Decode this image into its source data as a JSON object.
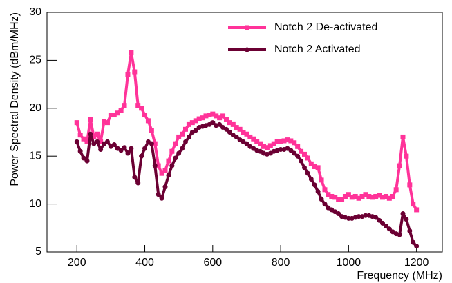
{
  "chart_data": {
    "type": "line",
    "x_label": "Frequency (MHz)",
    "y_label": "Power Spectral Density (dBm/MHz)",
    "x": [
      200,
      210,
      220,
      230,
      240,
      250,
      260,
      270,
      280,
      290,
      300,
      310,
      320,
      330,
      340,
      350,
      360,
      370,
      380,
      390,
      400,
      410,
      420,
      430,
      440,
      450,
      460,
      470,
      480,
      490,
      500,
      510,
      520,
      530,
      540,
      550,
      560,
      570,
      580,
      590,
      600,
      610,
      620,
      630,
      640,
      650,
      660,
      670,
      680,
      690,
      700,
      710,
      720,
      730,
      740,
      750,
      760,
      770,
      780,
      790,
      800,
      810,
      820,
      830,
      840,
      850,
      860,
      870,
      880,
      890,
      900,
      910,
      920,
      930,
      940,
      950,
      960,
      970,
      980,
      990,
      1000,
      1010,
      1020,
      1030,
      1040,
      1050,
      1060,
      1070,
      1080,
      1090,
      1100,
      1110,
      1120,
      1130,
      1140,
      1150,
      1160,
      1170,
      1180,
      1190,
      1200
    ],
    "series": [
      {
        "name": "Notch 2 De-activated",
        "color": "#ff3399",
        "marker": "square",
        "values": [
          18.5,
          17.2,
          16.8,
          16.5,
          18.8,
          17.0,
          17.3,
          16.5,
          18.6,
          18.5,
          19.3,
          19.3,
          19.5,
          19.8,
          20.3,
          23.5,
          25.8,
          23.8,
          20.3,
          20.0,
          19.3,
          18.7,
          17.7,
          16.3,
          14.0,
          13.2,
          13.5,
          14.5,
          15.5,
          16.3,
          17.0,
          17.3,
          17.8,
          18.3,
          18.5,
          18.7,
          18.9,
          19.0,
          19.2,
          19.3,
          19.4,
          19.2,
          19.0,
          19.2,
          18.8,
          18.5,
          18.3,
          18.0,
          17.8,
          17.5,
          17.3,
          17.0,
          16.8,
          16.5,
          16.3,
          16.0,
          15.9,
          16.1,
          16.3,
          16.5,
          16.5,
          16.6,
          16.7,
          16.6,
          16.4,
          16.0,
          15.5,
          15.2,
          14.8,
          14.2,
          13.9,
          13.8,
          12.5,
          11.5,
          11.0,
          10.8,
          10.7,
          10.5,
          10.5,
          10.8,
          11.0,
          10.7,
          10.8,
          10.6,
          10.8,
          11.0,
          10.8,
          10.7,
          10.8,
          10.9,
          10.7,
          10.8,
          10.6,
          10.8,
          11.5,
          14.0,
          17.0,
          15.0,
          12.0,
          10.0,
          9.4
        ]
      },
      {
        "name": "Notch 2 Activated",
        "color": "#6b0033",
        "marker": "circle",
        "values": [
          16.5,
          15.5,
          14.8,
          14.5,
          17.3,
          16.3,
          16.5,
          15.7,
          16.3,
          16.5,
          16.0,
          16.2,
          15.8,
          15.6,
          15.9,
          15.3,
          15.8,
          12.8,
          12.2,
          15.0,
          15.8,
          16.5,
          16.3,
          14.0,
          11.0,
          10.6,
          11.8,
          13.0,
          14.0,
          14.8,
          15.3,
          15.8,
          16.5,
          17.0,
          17.5,
          17.7,
          18.0,
          18.1,
          18.2,
          18.3,
          18.5,
          18.2,
          18.3,
          18.0,
          17.8,
          17.5,
          17.2,
          17.0,
          16.7,
          16.5,
          16.3,
          16.0,
          15.8,
          15.6,
          15.5,
          15.3,
          15.2,
          15.3,
          15.5,
          15.6,
          15.7,
          15.7,
          15.8,
          15.6,
          15.3,
          15.0,
          14.5,
          13.8,
          13.2,
          12.6,
          12.0,
          11.3,
          10.5,
          10.0,
          9.6,
          9.4,
          9.2,
          9.0,
          8.7,
          8.6,
          8.5,
          8.5,
          8.6,
          8.7,
          8.7,
          8.8,
          8.8,
          8.7,
          8.6,
          8.3,
          8.0,
          7.7,
          7.4,
          7.1,
          6.9,
          6.8,
          9.0,
          8.4,
          7.2,
          6.0,
          5.6
        ]
      }
    ],
    "xlim": [
      112,
      1276
    ],
    "ylim": [
      5,
      30
    ],
    "xticks": [
      200,
      400,
      600,
      800,
      1000,
      1200
    ],
    "yticks": [
      5,
      10,
      15,
      20,
      25,
      30
    ],
    "grid": false,
    "legend": "top-right"
  }
}
